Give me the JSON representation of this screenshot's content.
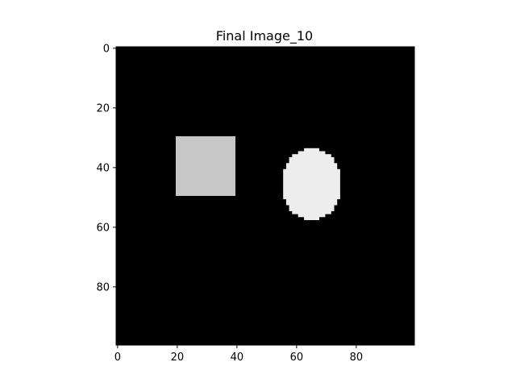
{
  "chart_data": {
    "type": "heatmap",
    "title": "Final Image_10",
    "xlabel": "",
    "ylabel": "",
    "image_size": [
      100,
      100
    ],
    "xlim": [
      -0.5,
      99.5
    ],
    "ylim": [
      99.5,
      -0.5
    ],
    "x_ticks": [
      0,
      20,
      40,
      60,
      80
    ],
    "y_ticks": [
      0,
      20,
      40,
      60,
      80
    ],
    "grid": false,
    "colormap": "gray",
    "background_value": 0,
    "shapes": [
      {
        "shape": "rectangle",
        "x_range": [
          20,
          39
        ],
        "y_range": [
          30,
          49
        ],
        "intensity": 0.78
      },
      {
        "shape": "ellipse",
        "center": [
          65,
          45.5
        ],
        "radius_x": 10,
        "radius_y": 12,
        "intensity": 0.93
      }
    ]
  }
}
